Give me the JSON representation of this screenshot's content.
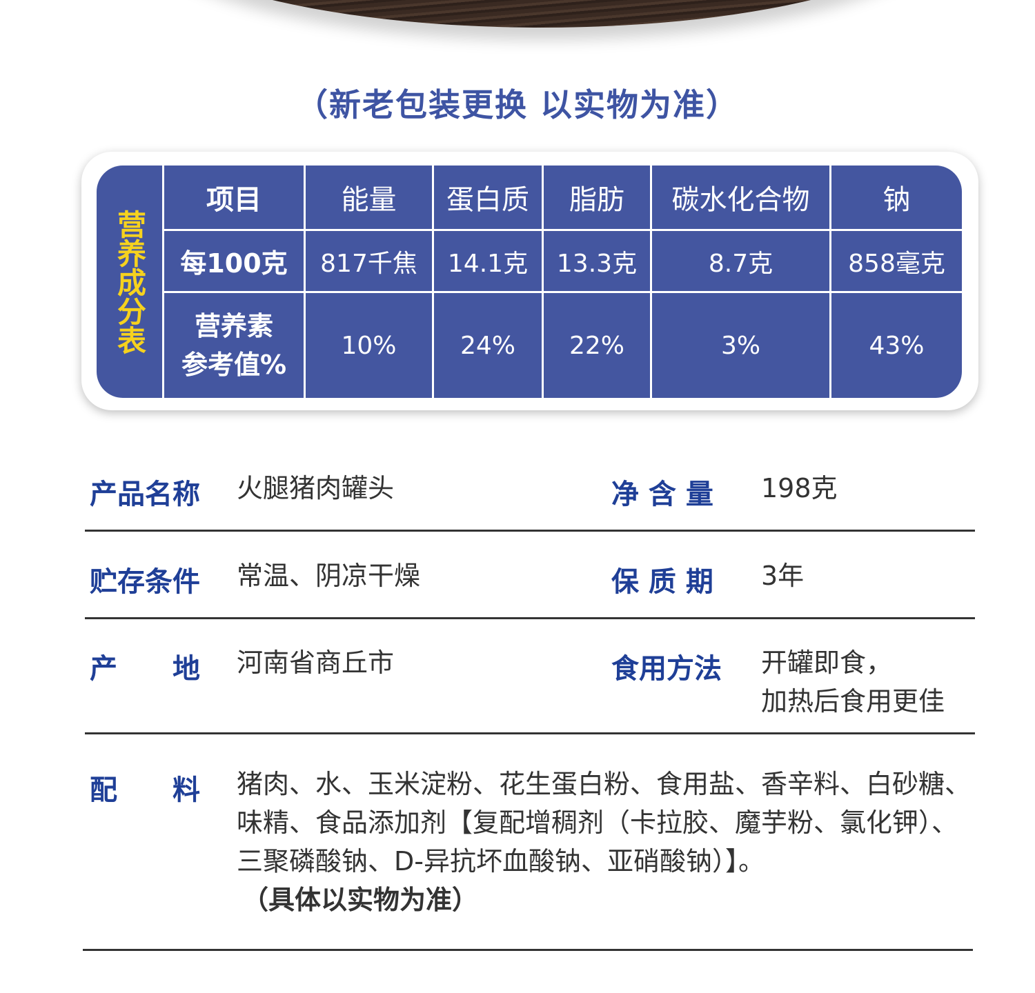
{
  "notice": "（新老包装更换 以实物为准）",
  "nutrition": {
    "side_label": "营养成分表",
    "headers": [
      "项目",
      "能量",
      "蛋白质",
      "脂肪",
      "碳水化合物",
      "钠"
    ],
    "per100": [
      "每100克",
      "817千焦",
      "14.1克",
      "13.3克",
      "8.7克",
      "858毫克"
    ],
    "nrv_label_1": "营养素",
    "nrv_label_2": "参考值%",
    "nrv": [
      "10%",
      "24%",
      "22%",
      "3%",
      "43%"
    ]
  },
  "info": {
    "name_label": "产品名称",
    "name": "火腿猪肉罐头",
    "net_label": "净 含 量",
    "net": "198克",
    "storage_label": "贮存条件",
    "storage": "常温、阴凉干燥",
    "shelf_label": "保 质 期",
    "shelf": "3年",
    "origin_label": "产　　地",
    "origin": "河南省商丘市",
    "usage_label": "食用方法",
    "usage_1": "开罐即食，",
    "usage_2": "加热后食用更佳",
    "ingredients_label": "配　　料",
    "ingredients_1": "猪肉、水、玉米淀粉、花生蛋白粉、食用盐、香辛料、白砂糖、",
    "ingredients_2": "味精、食品添加剂【复配增稠剂（卡拉胶、魔芋粉、氯化钾）、",
    "ingredients_3": "三聚磷酸钠、D-异抗坏血酸钠、亚硝酸钠）】。",
    "ingredients_note": "（具体以实物为准）"
  },
  "colors": {
    "table_blue": "#4456a0",
    "label_blue": "#1f3f97",
    "side_yellow": "#f6d21e"
  }
}
